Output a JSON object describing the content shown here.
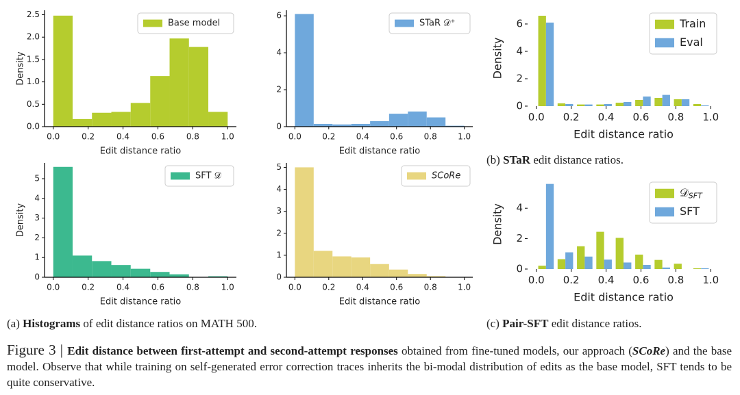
{
  "chart_data": [
    {
      "type": "histogram",
      "xlabel": "Edit distance ratio",
      "ylabel": "Density",
      "bins": [
        0,
        0.111,
        0.222,
        0.333,
        0.444,
        0.556,
        0.667,
        0.778,
        0.889,
        1.0
      ],
      "series": [
        {
          "name": "Base model",
          "color": "#b5cc2e",
          "values": [
            2.48,
            0.17,
            0.31,
            0.33,
            0.53,
            1.13,
            1.97,
            1.78,
            0.33
          ]
        }
      ],
      "xlim": [
        -0.05,
        1.05
      ],
      "xticks": [
        {
          "value": 0,
          "label": "0.0"
        },
        0.2,
        0.4,
        0.6,
        0.8,
        {
          "value": 1,
          "label": "1.0"
        }
      ],
      "ylim": [
        0,
        2.6
      ],
      "yticks": [
        {
          "value": 0,
          "label": "0.0"
        },
        0.5,
        {
          "value": 1,
          "label": "1.0"
        },
        1.5,
        {
          "value": 2,
          "label": "2.0"
        },
        2.5
      ],
      "legend": "upper right",
      "spines": true
    },
    {
      "type": "histogram",
      "xlabel": "Edit distance ratio",
      "bins": [
        0,
        0.111,
        0.222,
        0.333,
        0.444,
        0.556,
        0.667,
        0.778,
        0.889,
        1.0
      ],
      "series": [
        {
          "name": "STaR 𝒟⁺",
          "color": "#6fa8dc",
          "values": [
            6.1,
            0.15,
            0.12,
            0.15,
            0.3,
            0.7,
            0.82,
            0.5,
            0.05
          ]
        }
      ],
      "xlim": [
        -0.05,
        1.05
      ],
      "xticks": [
        {
          "value": 0,
          "label": "0.0"
        },
        0.2,
        0.4,
        0.6,
        0.8,
        {
          "value": 1,
          "label": "1.0"
        }
      ],
      "ylim": [
        0,
        6.3
      ],
      "yticks": [
        0,
        2,
        4,
        6
      ],
      "legend": "upper right",
      "spines": true
    },
    {
      "type": "histogram",
      "xlabel": "Edit distance ratio",
      "ylabel": "Density",
      "bins": [
        0,
        0.111,
        0.222,
        0.333,
        0.444,
        0.556,
        0.667,
        0.778,
        0.889,
        1.0
      ],
      "series": [
        {
          "name": "SFT 𝒟",
          "color": "#3cb98f",
          "values": [
            5.6,
            1.1,
            0.82,
            0.62,
            0.43,
            0.27,
            0.15,
            0,
            0.05
          ]
        }
      ],
      "xlim": [
        -0.05,
        1.05
      ],
      "xticks": [
        {
          "value": 0,
          "label": "0.0"
        },
        0.2,
        0.4,
        0.6,
        0.8,
        {
          "value": 1,
          "label": "1.0"
        }
      ],
      "ylim": [
        0,
        5.8
      ],
      "yticks": [
        0,
        1,
        2,
        3,
        4,
        5
      ],
      "legend": "upper right",
      "spines": true
    },
    {
      "type": "histogram",
      "xlabel": "Edit distance ratio",
      "bins": [
        0,
        0.111,
        0.222,
        0.333,
        0.444,
        0.556,
        0.667,
        0.778,
        0.889,
        1.0
      ],
      "series": [
        {
          "name": "SCoRe",
          "color": "#e8d680",
          "values": [
            5.0,
            1.2,
            0.95,
            0.9,
            0.6,
            0.35,
            0.15,
            0.05,
            0
          ]
        }
      ],
      "xlim": [
        -0.05,
        1.05
      ],
      "xticks": [
        {
          "value": 0,
          "label": "0.0"
        },
        0.2,
        0.4,
        0.6,
        0.8,
        {
          "value": 1,
          "label": "1.0"
        }
      ],
      "ylim": [
        0,
        5.2
      ],
      "yticks": [
        0,
        1,
        2,
        3,
        4,
        5
      ],
      "legend": "upper right",
      "legend_style": "italic",
      "spines": true
    },
    {
      "type": "grouped_histogram",
      "xlabel": "Edit distance ratio",
      "ylabel": "Density",
      "bins": [
        0,
        0.111,
        0.222,
        0.333,
        0.444,
        0.556,
        0.667,
        0.778,
        0.889,
        1.0
      ],
      "series": [
        {
          "name": "Train",
          "color": "#b5cc2e",
          "values": [
            6.6,
            0.2,
            0.12,
            0.12,
            0.25,
            0.45,
            0.6,
            0.5,
            0.15
          ]
        },
        {
          "name": "Eval",
          "color": "#6fa8dc",
          "values": [
            6.1,
            0.15,
            0.12,
            0.15,
            0.3,
            0.7,
            0.82,
            0.5,
            0.05
          ]
        }
      ],
      "xlim": [
        -0.05,
        1.05
      ],
      "xticks": [
        {
          "value": 0,
          "label": "0.0"
        },
        0.2,
        0.4,
        0.6,
        0.8,
        {
          "value": 1,
          "label": "1.0"
        }
      ],
      "ylim": [
        0,
        7
      ],
      "yticks": [
        0,
        2,
        4,
        6
      ],
      "legend": "upper right",
      "spines": false
    },
    {
      "type": "grouped_histogram",
      "xlabel": "Edit distance ratio",
      "ylabel": "Density",
      "bins": [
        0,
        0.111,
        0.222,
        0.333,
        0.444,
        0.556,
        0.667,
        0.778,
        0.889,
        1.0
      ],
      "series": [
        {
          "name": "𝒟",
          "name_sub": "SFT",
          "color": "#b5cc2e",
          "values": [
            0.22,
            0.65,
            1.5,
            2.45,
            2.05,
            0.95,
            0.6,
            0.35,
            0.05
          ]
        },
        {
          "name": "SFT",
          "color": "#6fa8dc",
          "values": [
            5.6,
            1.1,
            0.82,
            0.62,
            0.43,
            0.27,
            0.1,
            0,
            0.05
          ]
        }
      ],
      "xlim": [
        -0.05,
        1.05
      ],
      "xticks": [
        {
          "value": 0,
          "label": "0.0"
        },
        0.2,
        0.4,
        0.6,
        0.8,
        {
          "value": 1,
          "label": "1.0"
        }
      ],
      "ylim": [
        0,
        5.9
      ],
      "yticks": [
        0,
        2,
        4
      ],
      "legend": "upper right",
      "spines": false
    }
  ],
  "subcaptions": [
    [
      {
        "text": "(a) "
      },
      {
        "text": "Histograms",
        "bold": true
      },
      {
        "text": " of edit distance ratios on MATH 500."
      }
    ],
    [
      {
        "text": "(b) "
      },
      {
        "text": "STaR",
        "bold": true
      },
      {
        "text": " edit distance ratios."
      }
    ],
    [
      {
        "text": "(c) "
      },
      {
        "text": "Pair-SFT",
        "bold": true
      },
      {
        "text": " edit distance ratios."
      }
    ]
  ],
  "caption": [
    {
      "text": "Figure 3 | "
    },
    {
      "text": "Edit distance between first-attempt and second-attempt responses",
      "bold": true
    },
    {
      "text": " obtained from fine-tuned models, our approach ("
    },
    {
      "text": "SCoRe",
      "bold": true,
      "italic": true
    },
    {
      "text": ") and the base model. Observe that while training on self-generated error correction traces inherits the bi-modal distribution of edits as the base model, SFT tends to be quite conservative."
    }
  ]
}
